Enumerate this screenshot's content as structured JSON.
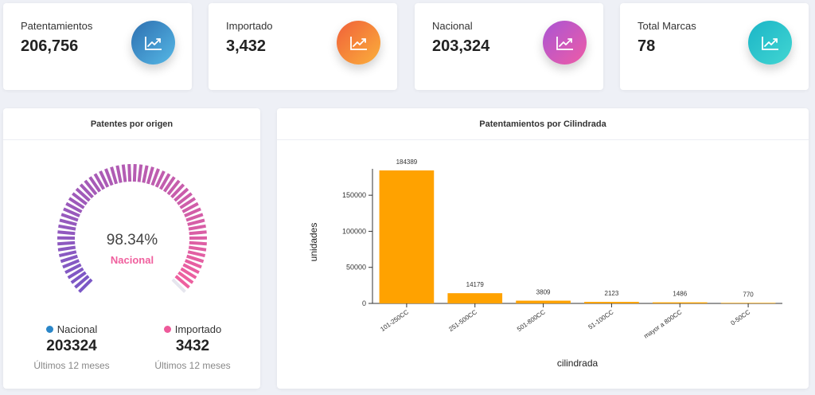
{
  "stats": [
    {
      "label": "Patentamientos",
      "value": "206,756",
      "gradient": [
        "#2d6fb0",
        "#56b8e6"
      ]
    },
    {
      "label": "Importado",
      "value": "3,432",
      "gradient": [
        "#f0603a",
        "#fbb03b"
      ]
    },
    {
      "label": "Nacional",
      "value": "203,324",
      "gradient": [
        "#a955d4",
        "#ef5ca6"
      ]
    },
    {
      "label": "Total Marcas",
      "value": "78",
      "gradient": [
        "#1bb5c7",
        "#42d6d2"
      ]
    }
  ],
  "gauge_panel": {
    "title": "Patentes por origen",
    "percent_text": "98.34%",
    "center_label": "Nacional",
    "fraction": 0.9834,
    "color_start": "#7b58c6",
    "color_end": "#f0609e",
    "legend": [
      {
        "name": "Nacional",
        "value": "203324",
        "sub": "Últimos 12 meses",
        "color": "#2a86c8"
      },
      {
        "name": "Importado",
        "value": "3432",
        "sub": "Últimos 12 meses",
        "color": "#ee5a9a"
      }
    ]
  },
  "bar_panel": {
    "title": "Patentamientos por Cilindrada"
  },
  "chart_data": {
    "type": "bar",
    "categories": [
      "101-250CC",
      "251-500CC",
      "501-800CC",
      "51-100CC",
      "mayor a 800CC",
      "0-50CC"
    ],
    "values": [
      184389,
      14179,
      3809,
      2123,
      1486,
      770
    ],
    "xlabel": "cilindrada",
    "ylabel": "unidades",
    "yticks": [
      0,
      50000,
      100000,
      150000
    ],
    "ylim": [
      0,
      184389
    ],
    "bar_color": "#ffa200",
    "grid": false
  }
}
